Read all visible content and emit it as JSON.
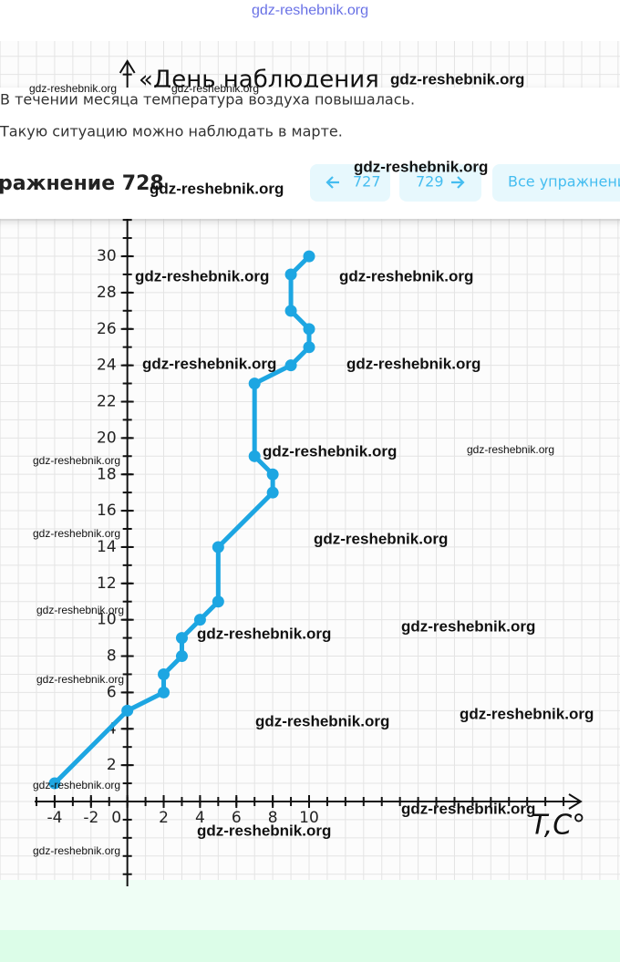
{
  "header": {
    "line1": "В течении месяца температура воздуха повышалась.",
    "line2": "Такую ситуацию можно наблюдать в марте.",
    "exercise": "ражнение 728",
    "prev": "727",
    "next": "729",
    "all": "Все упражнени"
  },
  "chart_data": {
    "type": "line",
    "y_label": "«День наблюдения",
    "x_label": "T,C°",
    "x": [
      -4,
      0,
      2,
      2,
      3,
      3,
      4,
      5,
      5,
      8,
      8,
      7,
      7,
      9,
      10,
      10,
      9,
      9,
      10
    ],
    "values": [
      1,
      5,
      6,
      7,
      8,
      9,
      10,
      11,
      14,
      17,
      18,
      19,
      23,
      24,
      25,
      26,
      27,
      29,
      30
    ],
    "color": "#1da6e2",
    "xlim": [
      -5,
      25
    ],
    "ylim": [
      -4,
      40
    ],
    "xticks": [
      -4,
      -2,
      0,
      2,
      4,
      6,
      8,
      10
    ],
    "yticks": [
      2,
      4,
      6,
      8,
      10,
      12,
      14,
      16,
      18,
      20,
      22,
      24,
      26,
      28,
      30
    ]
  },
  "watermarks": [
    "gdz-reshebnik.org",
    "gdz-reshebnik.org",
    "gdz-reshebnik.org",
    "gdz-reshebnik.org",
    "gdz-reshebnik.org",
    "gdz-reshebnik.org",
    "gdz-reshebnik.org",
    "gdz-reshebnik.org",
    "gdz-reshebnik.org",
    "gdz-reshebnik.org",
    "gdz-reshebnik.org",
    "gdz-reshebnik.org",
    "gdz-reshebnik.org",
    "gdz-reshebnik.org",
    "gdz-reshebnik.org",
    "gdz-reshebnik.org",
    "gdz-reshebnik.org",
    "gdz-reshebnik.org",
    "gdz-reshebnik.org",
    "gdz-reshebnik.org",
    "gdz-reshebnik.org",
    "gdz-reshebnik.org",
    "gdz-reshebnik.org",
    "gdz-reshebnik.org",
    "gdz-reshebnik.org"
  ]
}
